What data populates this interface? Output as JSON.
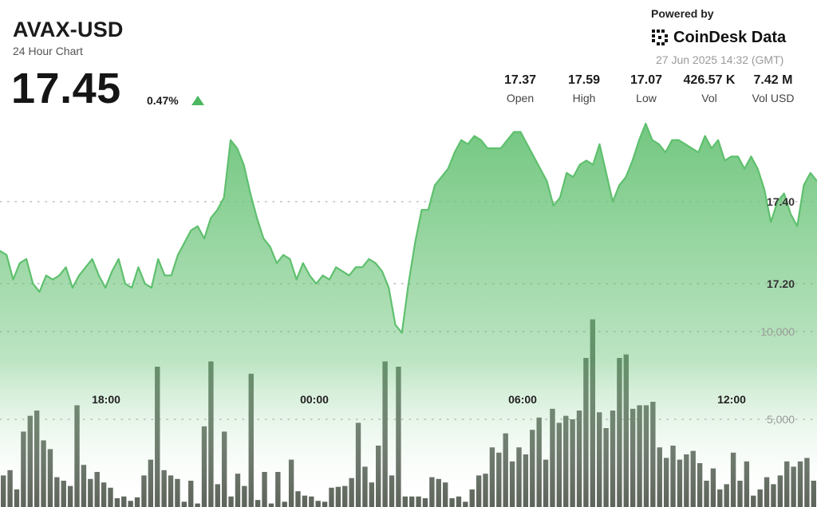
{
  "header": {
    "symbol": "AVAX-USD",
    "subtitle": "24 Hour Chart",
    "price": "17.45",
    "change_percent": "0.47%",
    "change_direction": "up",
    "powered_by": "Powered by",
    "brand": "CoinDesk Data",
    "timestamp": "27 Jun 2025 14:32 (GMT)"
  },
  "stats": [
    {
      "value": "17.37",
      "label": "Open"
    },
    {
      "value": "17.59",
      "label": "High"
    },
    {
      "value": "17.07",
      "label": "Low"
    },
    {
      "value": "426.57 K",
      "label": "Vol"
    },
    {
      "value": "7.42 M",
      "label": "Vol USD"
    }
  ],
  "colors": {
    "line": "#5fc06e",
    "area_top": "#6cc47a",
    "area_bottom": "#ffffff",
    "volume_bar": "#545d52",
    "change_arrow": "#4cb860"
  },
  "chart_data": [
    {
      "type": "area",
      "title": "",
      "series": [
        {
          "values": [
            17.28,
            17.27,
            17.21,
            17.25,
            17.26,
            17.2,
            17.18,
            17.22,
            17.21,
            17.22,
            17.24,
            17.19,
            17.22,
            17.24,
            17.26,
            17.22,
            17.19,
            17.23,
            17.26,
            17.2,
            17.19,
            17.24,
            17.2,
            17.19,
            17.26,
            17.22,
            17.22,
            17.27,
            17.3,
            17.33,
            17.34,
            17.31,
            17.36,
            17.38,
            17.41,
            17.55,
            17.53,
            17.49,
            17.42,
            17.36,
            17.31,
            17.29,
            17.25,
            17.27,
            17.26,
            17.21,
            17.25,
            17.22,
            17.2,
            17.22,
            17.21,
            17.24,
            17.23,
            17.22,
            17.24,
            17.24,
            17.26,
            17.25,
            17.23,
            17.19,
            17.1,
            17.08,
            17.2,
            17.3,
            17.38,
            17.38,
            17.44,
            17.46,
            17.48,
            17.52,
            17.55,
            17.54,
            17.56,
            17.55,
            17.53,
            17.53,
            17.53,
            17.55,
            17.57,
            17.57,
            17.54,
            17.51,
            17.48,
            17.45,
            17.39,
            17.41,
            17.47,
            17.46,
            17.49,
            17.5,
            17.49,
            17.54,
            17.47,
            17.4,
            17.44,
            17.46,
            17.5,
            17.55,
            17.59,
            17.55,
            17.54,
            17.52,
            17.55,
            17.55,
            17.54,
            17.53,
            17.52,
            17.56,
            17.53,
            17.55,
            17.5,
            17.51,
            17.51,
            17.48,
            17.51,
            17.48,
            17.43,
            17.35,
            17.4,
            17.42,
            17.37,
            17.34,
            17.44,
            17.47,
            17.45
          ]
        }
      ],
      "x_ticks": [
        "18:00",
        "00:00",
        "06:00",
        "12:00"
      ],
      "y_ticks": [
        "17.40",
        "17.20"
      ],
      "ylim": [
        17.05,
        17.6
      ],
      "grid": "dotted horizontal"
    },
    {
      "type": "bar",
      "title": "",
      "series": [
        {
          "values": [
            1800,
            2100,
            1000,
            4300,
            5200,
            5500,
            3800,
            3300,
            1700,
            1500,
            1200,
            5800,
            2400,
            1600,
            2000,
            1400,
            1100,
            500,
            600,
            350,
            550,
            1800,
            2700,
            8000,
            2100,
            1800,
            1600,
            300,
            1500,
            200,
            4600,
            8300,
            1300,
            4300,
            600,
            1900,
            1200,
            7600,
            400,
            2000,
            200,
            2000,
            300,
            2700,
            900,
            650,
            600,
            350,
            300,
            1100,
            1150,
            1200,
            1650,
            4800,
            2300,
            1400,
            3500,
            8300,
            1800,
            8000,
            600,
            600,
            600,
            500,
            1700,
            1600,
            1400,
            500,
            600,
            300,
            1000,
            1800,
            1900,
            3400,
            3100,
            4200,
            2600,
            3400,
            3000,
            4400,
            5100,
            2700,
            5600,
            4800,
            5200,
            5000,
            5500,
            8500,
            10700,
            5400,
            4500,
            5500,
            8500,
            8700,
            5600,
            5800,
            5800,
            6000,
            3400,
            2800,
            3500,
            2700,
            3000,
            3200,
            2500,
            1500,
            2200,
            1000,
            1300,
            3100,
            1500,
            2600,
            650,
            1000,
            1700,
            1300,
            1800,
            2600,
            2300,
            2600,
            2800,
            1500
          ]
        }
      ],
      "y_ticks": [
        "10,000",
        "5,000"
      ],
      "ylim": [
        0,
        12000
      ]
    }
  ]
}
